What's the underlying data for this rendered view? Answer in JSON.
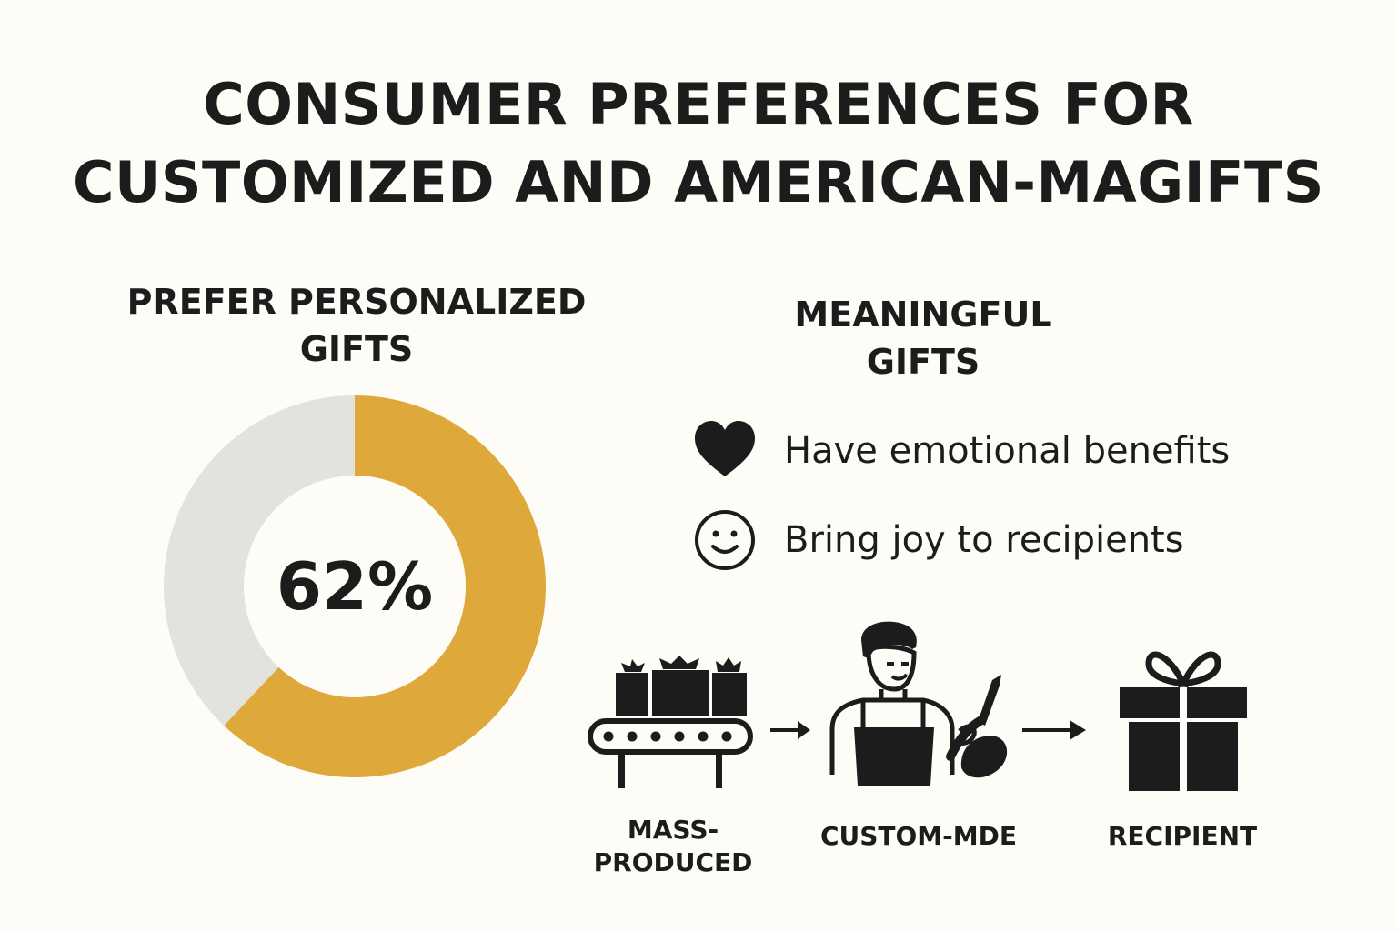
{
  "title": {
    "line1": "CONSUMER PREFERENCES FOR",
    "line2": "CUSTOMIZED AND AMERICAN-MAGIFTS"
  },
  "personalized": {
    "heading_line1": "PREFER PERSONALIZED",
    "heading_line2": "GIFTS",
    "value_label": "62%",
    "share": 0.62,
    "colors": {
      "primary": "#dea93a",
      "remainder": "#e4e2dd"
    }
  },
  "meaningful": {
    "heading_line1": "MEANINGFUL",
    "heading_line2": "GIFTS",
    "items": [
      {
        "icon": "heart-icon",
        "text": "Have emotional benefits"
      },
      {
        "icon": "smiley-icon",
        "text": "Bring joy to recipients"
      }
    ]
  },
  "flow": {
    "steps": [
      {
        "icon": "conveyor-belt-icon",
        "label_line1": "MASS-",
        "label_line2": "PRODUCED"
      },
      {
        "icon": "craftsman-icon",
        "label_line1": "CUSTOM-MDE",
        "label_line2": ""
      },
      {
        "icon": "gift-box-icon",
        "label_line1": "RECIPIENT",
        "label_line2": ""
      }
    ],
    "arrow_icon": "arrow-right-icon"
  }
}
